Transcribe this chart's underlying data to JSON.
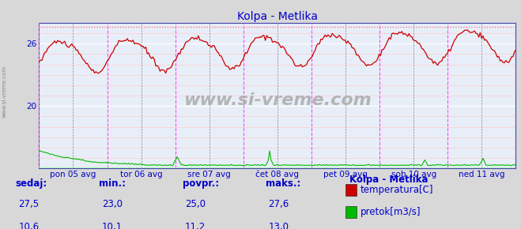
{
  "title": "Kolpa - Metlika",
  "title_color": "#0000cc",
  "bg_color": "#d8d8d8",
  "plot_bg_color": "#e8eef8",
  "x_labels": [
    "pon 05 avg",
    "tor 06 avg",
    "sre 07 avg",
    "čet 08 avg",
    "pet 09 avg",
    "sob 10 avg",
    "ned 11 avg"
  ],
  "x_ticks_pos": [
    0.5,
    1.5,
    2.5,
    3.5,
    4.5,
    5.5,
    6.5
  ],
  "temp_color": "#cc0000",
  "flow_color": "#00bb00",
  "hline_temp_dotted_val": 27.6,
  "hline_flow_dotted_val": 15.3,
  "hline_temp_color": "#ff6666",
  "hline_flow_color": "#66ff66",
  "vline_day_color": "#ff44ff",
  "vline_mid_color": "#888888",
  "grid_minor_h_color": "#ffcccc",
  "grid_major_h_color": "#ffffff",
  "spine_color": "#4444aa",
  "ymin": 14.0,
  "ymax": 28.0,
  "yticks": [
    20,
    26
  ],
  "ytick_labels": [
    "20",
    "26"
  ],
  "watermark": "www.si-vreme.com",
  "left_label": "www.si-vreme.com",
  "legend_title": "Kolpa - Metlika",
  "legend_items": [
    "temperatura[C]",
    "pretok[m3/s]"
  ],
  "legend_colors": [
    "#cc0000",
    "#00bb00"
  ],
  "stats_headers": [
    "sedaj:",
    "min.:",
    "povpr.:",
    "maks.:"
  ],
  "stats_temp": [
    "27,5",
    "23,0",
    "25,0",
    "27,6"
  ],
  "stats_flow": [
    "10,6",
    "10,1",
    "11,2",
    "13,0"
  ],
  "tick_color": "#0000cc",
  "tick_fontsize": 7.5,
  "stats_fontsize": 8.5,
  "title_fontsize": 10
}
